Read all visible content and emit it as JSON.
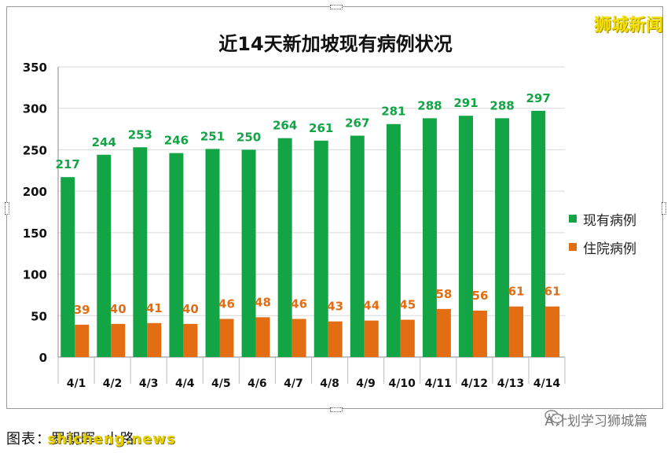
{
  "brand": "狮城新闻",
  "footer": {
    "source_label": "图表：罗朝晖•小路",
    "watermark": "shicheng.news",
    "account": "A计划学习狮城篇",
    "account_icon": "wechat-icon"
  },
  "colors": {
    "current": "#13a445",
    "hospital": "#e36d12",
    "current_label": "#13a445",
    "hospital_label": "#e36d12"
  },
  "chart_data": {
    "type": "bar",
    "title": "近14天新加坡现有病例状况",
    "categories": [
      "4/1",
      "4/2",
      "4/3",
      "4/4",
      "4/5",
      "4/6",
      "4/7",
      "4/8",
      "4/9",
      "4/10",
      "4/11",
      "4/12",
      "4/13",
      "4/14"
    ],
    "series": [
      {
        "name": "现有病例",
        "values": [
          217,
          244,
          253,
          246,
          251,
          250,
          264,
          261,
          267,
          281,
          288,
          291,
          288,
          297
        ]
      },
      {
        "name": "住院病例",
        "values": [
          39,
          40,
          41,
          40,
          46,
          48,
          46,
          43,
          44,
          45,
          58,
          56,
          61,
          61
        ]
      }
    ],
    "ylim": [
      0,
      350
    ],
    "yticks": [
      0,
      50,
      100,
      150,
      200,
      250,
      300,
      350
    ],
    "grid": true,
    "legend": "right",
    "xlabel": "",
    "ylabel": ""
  }
}
